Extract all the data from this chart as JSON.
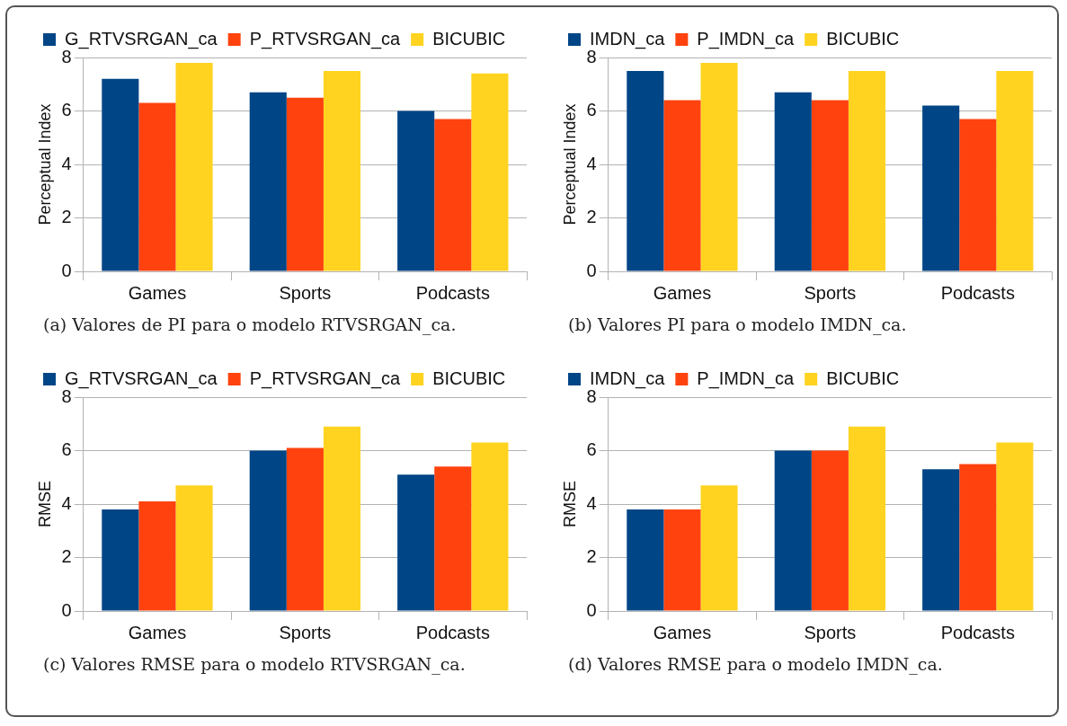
{
  "chart_data": [
    {
      "type": "bar",
      "categories": [
        "Games",
        "Sports",
        "Podcasts"
      ],
      "ylabel": "Perceptual Index",
      "ylim": [
        0,
        8
      ],
      "yticks": [
        0,
        2,
        4,
        6,
        8
      ],
      "grid": "y",
      "legend": "top",
      "annotations": [
        "(a) Valores de PI para o modelo RTVSRGAN_ca."
      ],
      "series": [
        {
          "name": "G_RTVSRGAN_ca",
          "color": "#004586",
          "values": [
            7.2,
            6.7,
            6.0
          ]
        },
        {
          "name": "P_RTVSRGAN_ca",
          "color": "#ff420e",
          "values": [
            6.3,
            6.5,
            5.7
          ]
        },
        {
          "name": "BICUBIC",
          "color": "#ffd320",
          "values": [
            7.8,
            7.5,
            7.4
          ]
        }
      ]
    },
    {
      "type": "bar",
      "categories": [
        "Games",
        "Sports",
        "Podcasts"
      ],
      "ylabel": "Perceptual Index",
      "ylim": [
        0,
        8
      ],
      "yticks": [
        0,
        2,
        4,
        6,
        8
      ],
      "grid": "y",
      "legend": "top",
      "annotations": [
        "(b) Valores PI para o modelo IMDN_ca."
      ],
      "series": [
        {
          "name": "IMDN_ca",
          "color": "#004586",
          "values": [
            7.5,
            6.7,
            6.2
          ]
        },
        {
          "name": "P_IMDN_ca",
          "color": "#ff420e",
          "values": [
            6.4,
            6.4,
            5.7
          ]
        },
        {
          "name": "BICUBIC",
          "color": "#ffd320",
          "values": [
            7.8,
            7.5,
            7.5
          ]
        }
      ]
    },
    {
      "type": "bar",
      "categories": [
        "Games",
        "Sports",
        "Podcasts"
      ],
      "ylabel": "RMSE",
      "ylim": [
        0,
        8
      ],
      "yticks": [
        0,
        2,
        4,
        6,
        8
      ],
      "grid": "y",
      "legend": "top",
      "annotations": [
        "(c) Valores RMSE para o modelo RTVSRGAN_ca."
      ],
      "series": [
        {
          "name": "G_RTVSRGAN_ca",
          "color": "#004586",
          "values": [
            3.8,
            6.0,
            5.1
          ]
        },
        {
          "name": "P_RTVSRGAN_ca",
          "color": "#ff420e",
          "values": [
            4.1,
            6.1,
            5.4
          ]
        },
        {
          "name": "BICUBIC",
          "color": "#ffd320",
          "values": [
            4.7,
            6.9,
            6.3
          ]
        }
      ]
    },
    {
      "type": "bar",
      "categories": [
        "Games",
        "Sports",
        "Podcasts"
      ],
      "ylabel": "RMSE",
      "ylim": [
        0,
        8
      ],
      "yticks": [
        0,
        2,
        4,
        6,
        8
      ],
      "grid": "y",
      "legend": "top",
      "annotations": [
        "(d) Valores RMSE para o modelo IMDN_ca."
      ],
      "series": [
        {
          "name": "IMDN_ca",
          "color": "#004586",
          "values": [
            3.8,
            6.0,
            5.3
          ]
        },
        {
          "name": "P_IMDN_ca",
          "color": "#ff420e",
          "values": [
            3.8,
            6.0,
            5.5
          ]
        },
        {
          "name": "BICUBIC",
          "color": "#ffd320",
          "values": [
            4.7,
            6.9,
            6.3
          ]
        }
      ]
    }
  ]
}
